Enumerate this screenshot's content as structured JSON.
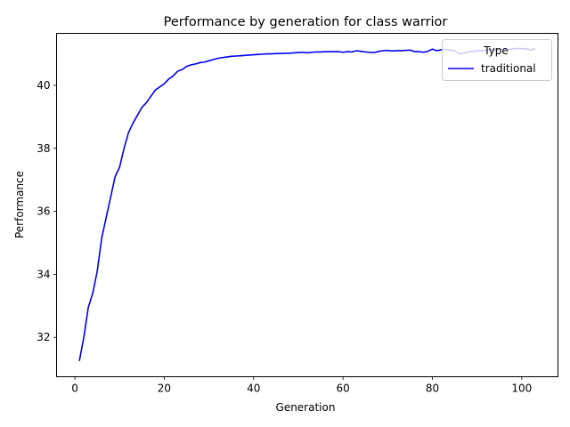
{
  "chart_data": {
    "type": "line",
    "title": "Performance by generation for class warrior",
    "xlabel": "Generation",
    "ylabel": "Performance",
    "xlim": [
      -4.1,
      108.1
    ],
    "ylim": [
      30.75,
      41.65
    ],
    "xticks": [
      0,
      20,
      40,
      60,
      80,
      100
    ],
    "yticks": [
      32,
      34,
      36,
      38,
      40
    ],
    "grid": false,
    "legend": {
      "title": "Type",
      "placement": "top-right"
    },
    "series": [
      {
        "name": "traditional",
        "color": "#0000ee",
        "x": [
          1,
          2,
          3,
          4,
          5,
          6,
          7,
          8,
          9,
          10,
          11,
          12,
          13,
          14,
          15,
          16,
          17,
          18,
          19,
          20,
          21,
          22,
          23,
          24,
          25,
          26,
          27,
          28,
          29,
          30,
          31,
          32,
          33,
          34,
          35,
          36,
          37,
          38,
          39,
          40,
          41,
          42,
          43,
          44,
          45,
          46,
          47,
          48,
          49,
          50,
          51,
          52,
          53,
          54,
          55,
          56,
          57,
          58,
          59,
          60,
          61,
          62,
          63,
          64,
          65,
          66,
          67,
          68,
          69,
          70,
          71,
          72,
          73,
          74,
          75,
          76,
          77,
          78,
          79,
          80,
          81,
          82,
          83,
          84,
          85,
          86,
          87,
          88,
          89,
          90,
          91,
          92,
          93,
          94,
          95,
          96,
          97,
          98,
          99,
          100,
          101,
          102,
          103
        ],
        "y": [
          31.25,
          32.0,
          32.95,
          33.4,
          34.1,
          35.15,
          35.8,
          36.45,
          37.1,
          37.4,
          38.0,
          38.5,
          38.8,
          39.05,
          39.3,
          39.45,
          39.65,
          39.85,
          39.95,
          40.05,
          40.2,
          40.3,
          40.45,
          40.5,
          40.6,
          40.65,
          40.68,
          40.72,
          40.74,
          40.78,
          40.82,
          40.86,
          40.88,
          40.9,
          40.92,
          40.93,
          40.94,
          40.95,
          40.96,
          40.97,
          40.98,
          40.99,
          41.0,
          41.0,
          41.01,
          41.01,
          41.02,
          41.02,
          41.03,
          41.04,
          41.05,
          41.03,
          41.05,
          41.06,
          41.06,
          41.07,
          41.07,
          41.07,
          41.07,
          41.05,
          41.07,
          41.06,
          41.1,
          41.08,
          41.06,
          41.05,
          41.04,
          41.08,
          41.1,
          41.11,
          41.09,
          41.1,
          41.1,
          41.11,
          41.12,
          41.07,
          41.07,
          41.05,
          41.08,
          41.15,
          41.1,
          41.13,
          41.14,
          41.12,
          41.1,
          41.0,
          41.02,
          41.06,
          41.08,
          41.1,
          41.1,
          41.12,
          41.13,
          41.12,
          41.14,
          41.15,
          41.13,
          41.16,
          41.17,
          41.17,
          41.16,
          41.12,
          41.17
        ]
      }
    ]
  }
}
